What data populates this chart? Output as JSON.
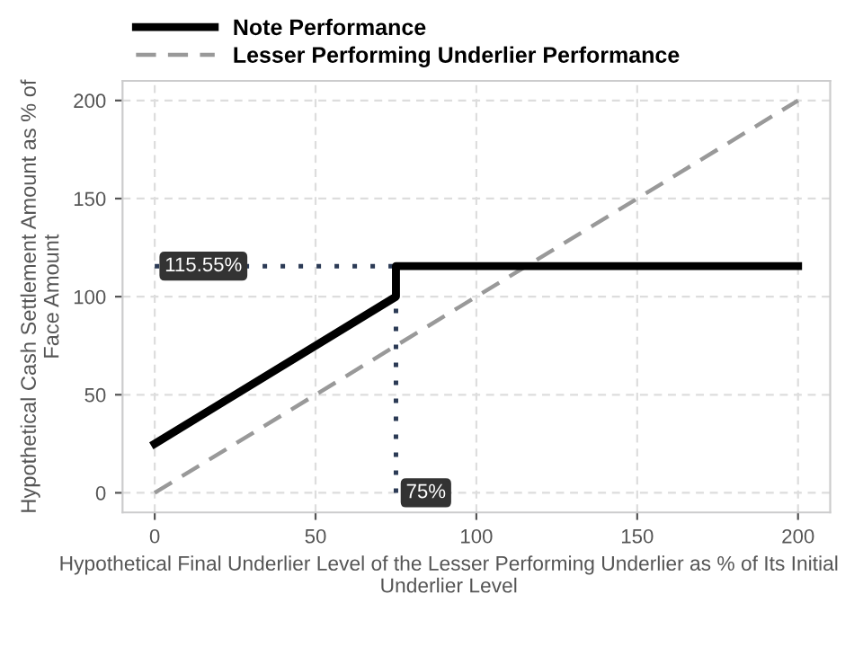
{
  "chart_data": {
    "type": "line",
    "xlabel": "Hypothetical Final Underlier Level of the Lesser Performing Underlier as % of Its Initial Underlier Level",
    "ylabel": "Hypothetical Cash Settlement Amount as % of Face Amount",
    "series": [
      {
        "name": "Note Performance",
        "color": "#000000",
        "x": [
          0,
          75,
          75,
          200
        ],
        "values": [
          25,
          100,
          115.55,
          115.55
        ],
        "line_style": "solid"
      },
      {
        "name": "Lesser Performing Underlier Performance",
        "color": "#999999",
        "x": [
          0,
          200
        ],
        "values": [
          0,
          200
        ],
        "line_style": "dashed"
      },
      {
        "color": "#2b3a55",
        "x": [
          0,
          75
        ],
        "values": [
          115.55,
          115.55
        ],
        "line_style": "dotted"
      },
      {
        "color": "#2b3a55",
        "x": [
          75,
          75
        ],
        "values": [
          0,
          115.55
        ],
        "line_style": "dotted"
      }
    ],
    "annotations": [
      {
        "text": "115.55%",
        "x": 0,
        "y": 115.55
      },
      {
        "text": "75%",
        "x": 75,
        "y": 0
      }
    ],
    "xlim": [
      -10,
      210
    ],
    "ylim": [
      -10,
      210
    ],
    "xticks": [
      0,
      50,
      100,
      150,
      200
    ],
    "yticks": [
      0,
      50,
      100,
      150,
      200
    ],
    "grid": true,
    "legend": "top left",
    "marker": "none"
  }
}
